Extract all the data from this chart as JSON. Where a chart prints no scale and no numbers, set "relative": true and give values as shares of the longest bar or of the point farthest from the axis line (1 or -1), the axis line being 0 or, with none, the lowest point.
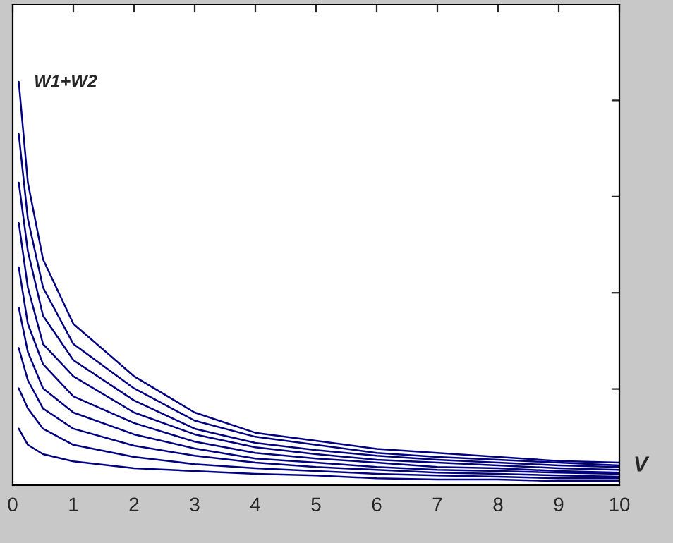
{
  "chart_data": {
    "type": "line",
    "relative": true,
    "xlabel": "V",
    "ylabel": "W1+W2",
    "x": [
      0.1,
      0.25,
      0.5,
      1,
      2,
      3,
      4,
      5,
      6,
      7,
      8,
      9,
      10
    ],
    "xlim": [
      0,
      10
    ],
    "xticks": [
      0,
      1,
      2,
      3,
      4,
      5,
      6,
      7,
      8,
      9,
      10
    ],
    "grid": false,
    "marker": "none",
    "line_style": "solid",
    "series": [
      {
        "color": "#000080",
        "values": [
          1,
          0.75,
          0.56,
          0.4,
          0.27,
          0.18,
          0.13,
          0.11,
          0.09,
          0.08,
          0.07,
          0.06,
          0.056
        ]
      },
      {
        "color": "#000080",
        "values": [
          0.87,
          0.66,
          0.49,
          0.35,
          0.24,
          0.16,
          0.12,
          0.1,
          0.08,
          0.07,
          0.063,
          0.056,
          0.049
        ]
      },
      {
        "color": "#000080",
        "values": [
          0.75,
          0.58,
          0.42,
          0.31,
          0.21,
          0.14,
          0.105,
          0.087,
          0.073,
          0.063,
          0.056,
          0.049,
          0.045
        ]
      },
      {
        "color": "#000080",
        "values": [
          0.65,
          0.49,
          0.35,
          0.27,
          0.18,
          0.126,
          0.094,
          0.077,
          0.063,
          0.056,
          0.049,
          0.042,
          0.038
        ]
      },
      {
        "color": "#000080",
        "values": [
          0.54,
          0.4,
          0.3,
          0.22,
          0.154,
          0.108,
          0.08,
          0.066,
          0.056,
          0.045,
          0.042,
          0.035,
          0.031
        ]
      },
      {
        "color": "#000080",
        "values": [
          0.44,
          0.33,
          0.24,
          0.18,
          0.126,
          0.091,
          0.066,
          0.056,
          0.045,
          0.038,
          0.035,
          0.031,
          0.028
        ]
      },
      {
        "color": "#000080",
        "values": [
          0.34,
          0.26,
          0.19,
          0.14,
          0.098,
          0.073,
          0.056,
          0.045,
          0.038,
          0.031,
          0.028,
          0.024,
          0.021
        ]
      },
      {
        "color": "#000080",
        "values": [
          0.24,
          0.19,
          0.14,
          0.1,
          0.07,
          0.052,
          0.042,
          0.035,
          0.028,
          0.024,
          0.021,
          0.017,
          0.017
        ]
      },
      {
        "color": "#000080",
        "values": [
          0.14,
          0.1,
          0.077,
          0.059,
          0.042,
          0.035,
          0.028,
          0.024,
          0.017,
          0.014,
          0.014,
          0.01,
          0.01
        ]
      }
    ]
  }
}
